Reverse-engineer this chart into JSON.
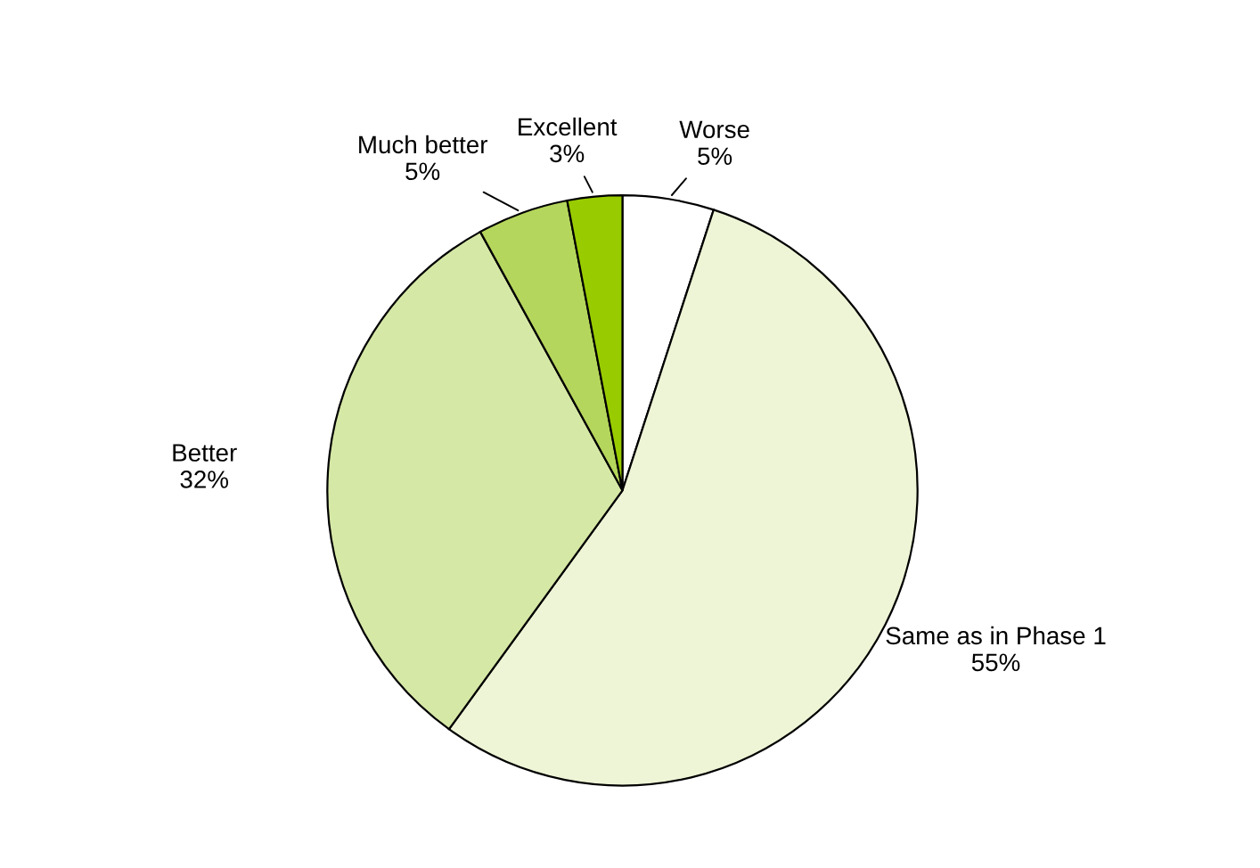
{
  "chart_data": {
    "type": "pie",
    "categories": [
      "Worse",
      "Same as in Phase 1",
      "Better",
      "Much better",
      "Excellent"
    ],
    "values": [
      5,
      55,
      32,
      5,
      3
    ],
    "value_labels": [
      "5%",
      "55%",
      "32%",
      "5%",
      "3%"
    ],
    "colors": [
      "#ffffff",
      "#eef5d6",
      "#d6e8a6",
      "#b5d65c",
      "#99cc00"
    ]
  }
}
